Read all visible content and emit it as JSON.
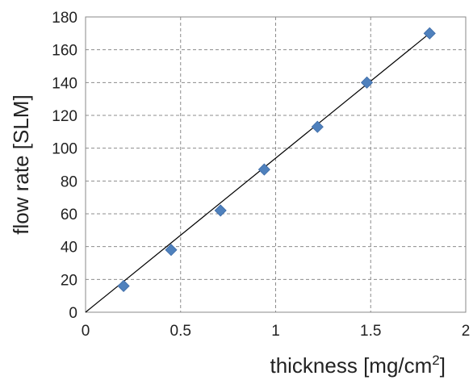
{
  "chart_data": {
    "type": "scatter",
    "xlabel": "thickness [mg/cm",
    "xlabel_superscript": "2",
    "xlabel_suffix": "]",
    "ylabel": "flow rate [SLM]",
    "xlim": [
      0,
      2
    ],
    "ylim": [
      0,
      180
    ],
    "x_ticks": [
      "0",
      "0.5",
      "1",
      "1.5",
      "2"
    ],
    "y_ticks": [
      "0",
      "20",
      "40",
      "60",
      "80",
      "100",
      "120",
      "140",
      "160",
      "180"
    ],
    "grid": true,
    "legend": false,
    "marker": "diamond",
    "marker_color": "#4f81bd",
    "line_color": "#000000",
    "series": [
      {
        "x": [
          0.2,
          0.45,
          0.71,
          0.94,
          1.22,
          1.48,
          1.81
        ],
        "y": [
          16,
          38,
          62,
          87,
          113,
          140,
          170
        ]
      }
    ],
    "trendline": {
      "x": [
        0,
        1.81
      ],
      "y": [
        0,
        170
      ]
    }
  }
}
